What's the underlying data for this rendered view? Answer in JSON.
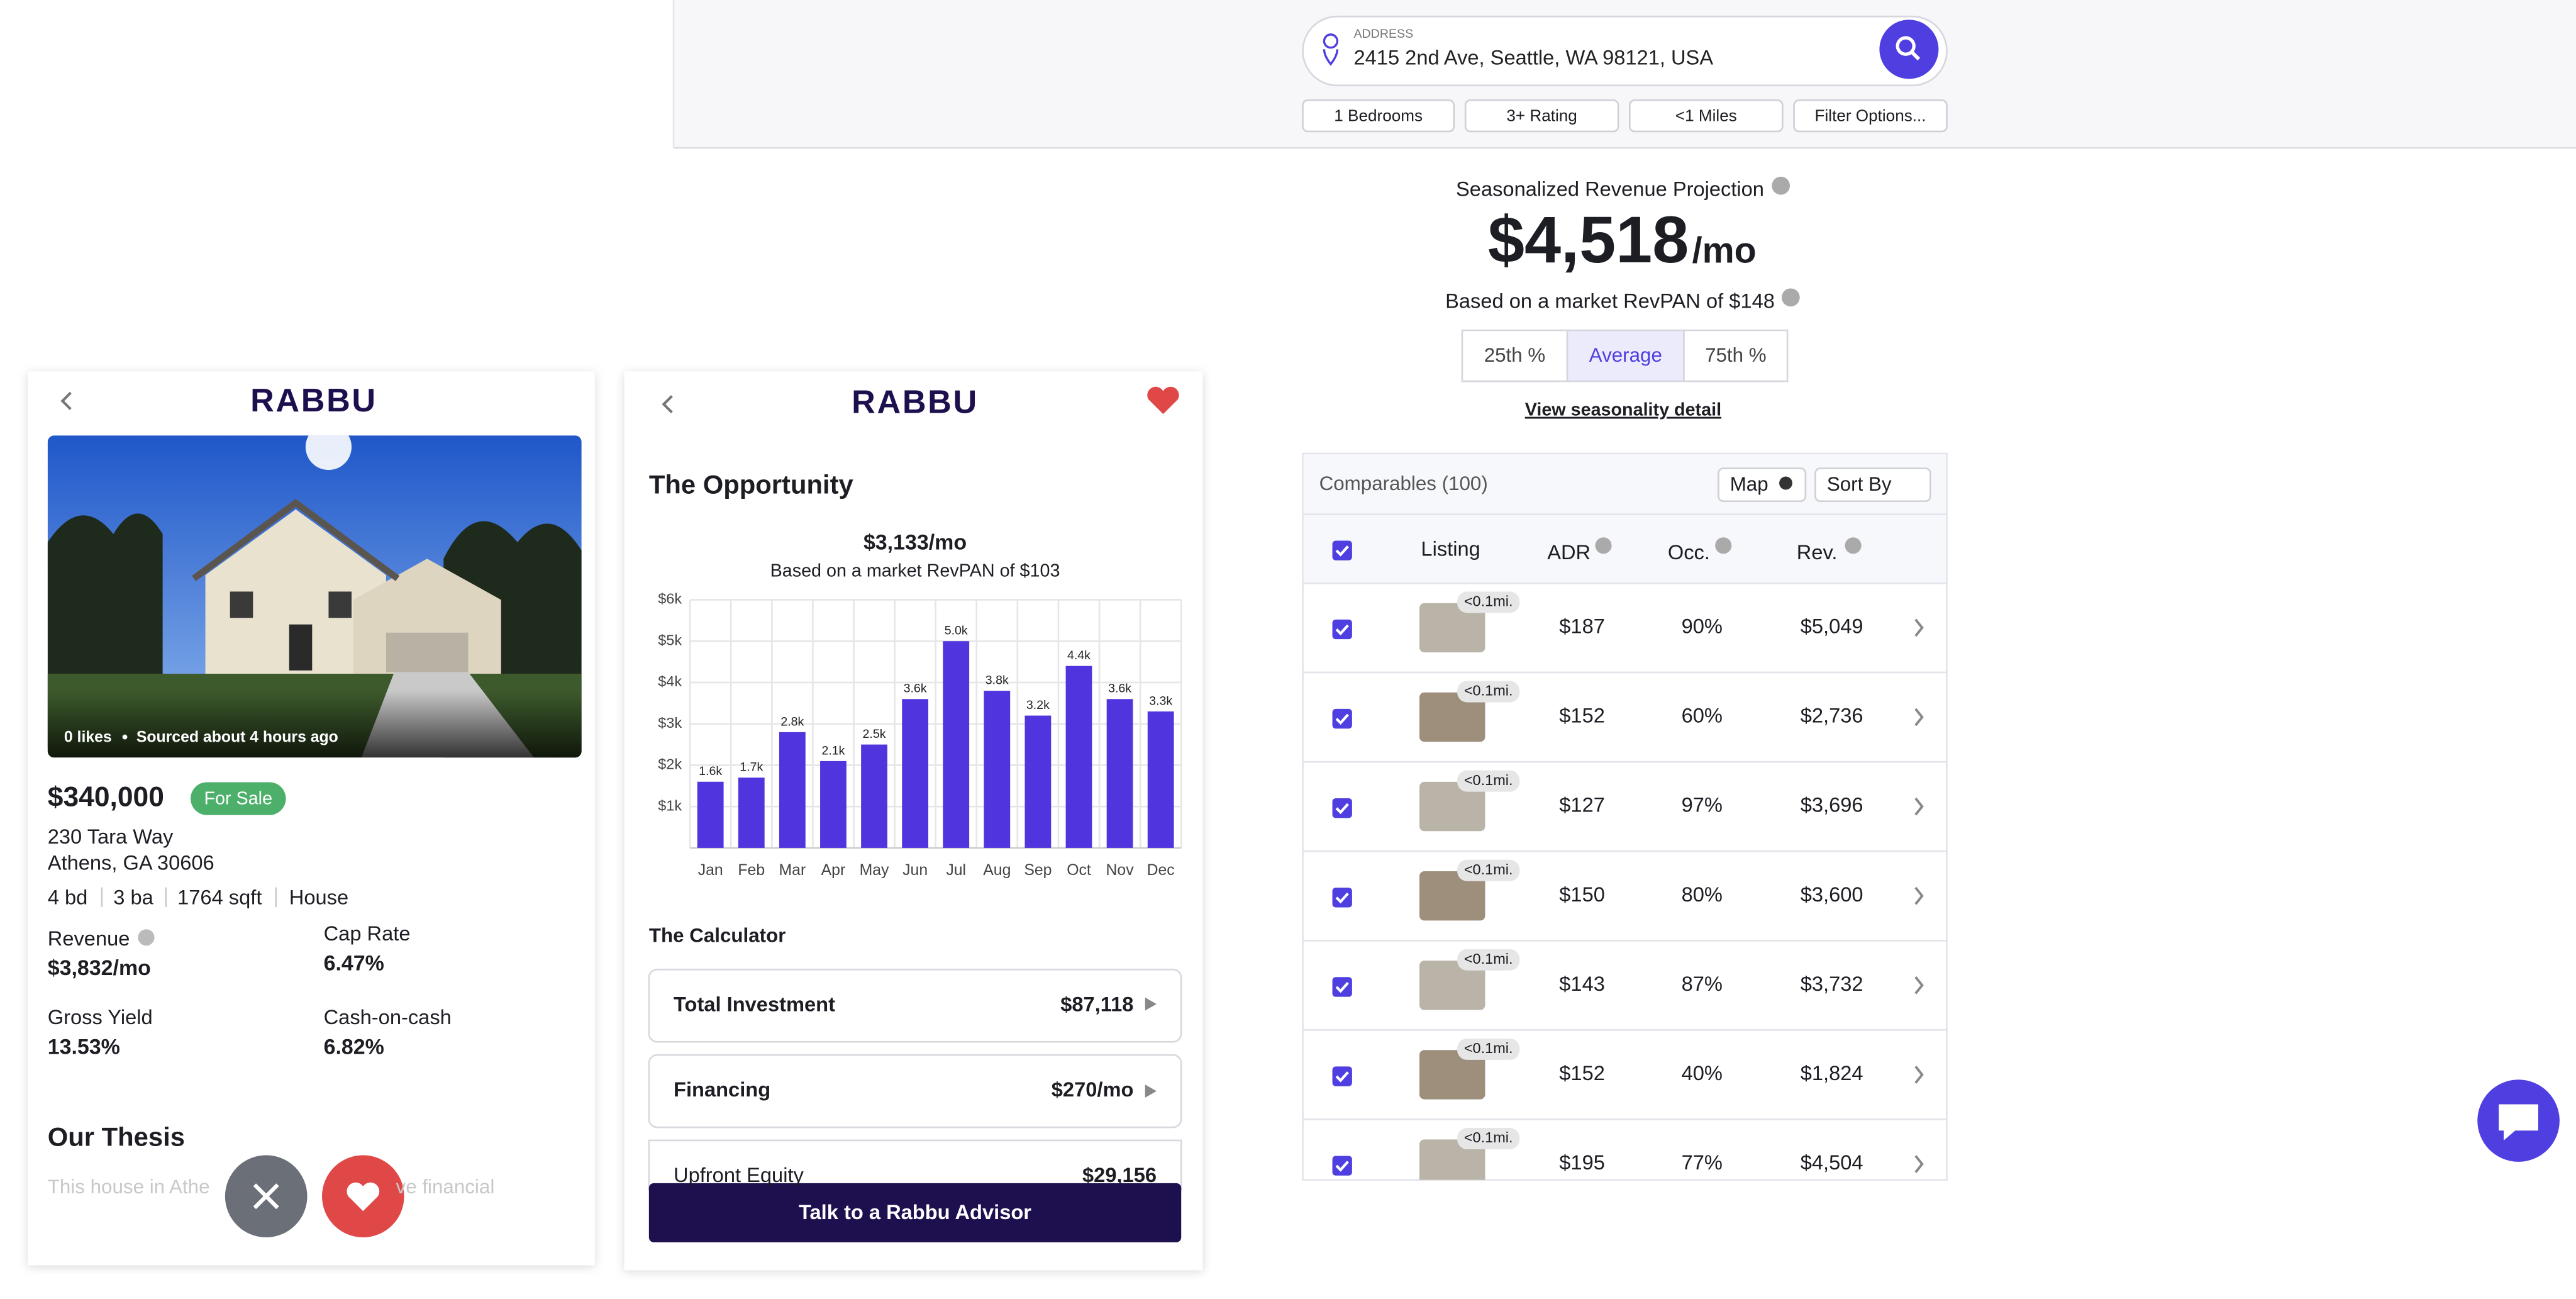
{
  "search": {
    "address_label": "ADDRESS",
    "address": "2415 2nd Ave, Seattle, WA 98121, USA",
    "filters": [
      "1 Bedrooms",
      "3+ Rating",
      "<1 Miles",
      "Filter Options..."
    ]
  },
  "projection": {
    "title": "Seasonalized Revenue Projection",
    "amount": "$4,518",
    "unit": "/mo",
    "subtitle": "Based on a market RevPAN of $148",
    "percentiles": [
      "25th %",
      "Average",
      "75th %"
    ],
    "link": "View seasonality detail"
  },
  "comparables": {
    "title": "Comparables (100)",
    "map": "Map",
    "sort": "Sort By",
    "columns": [
      "Listing",
      "ADR",
      "Occ.",
      "Rev."
    ],
    "rows": [
      {
        "distance": "<0.1mi.",
        "adr": "$187",
        "occ": "90%",
        "rev": "$5,049"
      },
      {
        "distance": "<0.1mi.",
        "adr": "$152",
        "occ": "60%",
        "rev": "$2,736"
      },
      {
        "distance": "<0.1mi.",
        "adr": "$127",
        "occ": "97%",
        "rev": "$3,696"
      },
      {
        "distance": "<0.1mi.",
        "adr": "$150",
        "occ": "80%",
        "rev": "$3,600"
      },
      {
        "distance": "<0.1mi.",
        "adr": "$143",
        "occ": "87%",
        "rev": "$3,732"
      },
      {
        "distance": "<0.1mi.",
        "adr": "$152",
        "occ": "40%",
        "rev": "$1,824"
      },
      {
        "distance": "<0.1mi.",
        "adr": "$195",
        "occ": "77%",
        "rev": "$4,504"
      }
    ]
  },
  "listing": {
    "logo": "RABBU",
    "likes": "0 likes",
    "source": "Sourced about 4 hours ago",
    "price": "$340,000",
    "status": "For Sale",
    "street": "230 Tara Way",
    "city": "Athens, GA 30606",
    "details": [
      "4 bd",
      "3 ba",
      "1764 sqft",
      "House"
    ],
    "metrics": [
      {
        "label": "Revenue",
        "value": "$3,832/mo"
      },
      {
        "label": "Cap Rate",
        "value": "6.47%"
      },
      {
        "label": "Gross Yield",
        "value": "13.53%"
      },
      {
        "label": "Cash-on-cash",
        "value": "6.82%"
      }
    ],
    "thesis_title": "Our Thesis",
    "thesis_text": [
      "This house in Athe",
      "ve financial"
    ]
  },
  "opportunity": {
    "logo": "RABBU",
    "title": "The Opportunity",
    "amount": "$3,133/mo",
    "subtitle": "Based on a market RevPAN of $103",
    "calculator_title": "The Calculator",
    "calculator": [
      {
        "label": "Total Investment",
        "value": "$87,118"
      },
      {
        "label": "Financing",
        "value": "$270/mo"
      },
      {
        "label": "Upfront Equity",
        "value": "$29,156"
      }
    ],
    "cta": "Talk to a Rabbu Advisor"
  },
  "chart_data": {
    "type": "bar",
    "categories": [
      "Jan",
      "Feb",
      "Mar",
      "Apr",
      "May",
      "Jun",
      "Jul",
      "Aug",
      "Sep",
      "Oct",
      "Nov",
      "Dec"
    ],
    "values": [
      1600,
      1700,
      2800,
      2100,
      2500,
      3600,
      5000,
      3800,
      3200,
      4400,
      3600,
      3300
    ],
    "value_labels": [
      "1.6k",
      "1.7k",
      "2.8k",
      "2.1k",
      "2.5k",
      "3.6k",
      "5.0k",
      "3.8k",
      "3.2k",
      "4.4k",
      "3.6k",
      "3.3k"
    ],
    "color": "#5035de",
    "ylim": [
      0,
      6000
    ],
    "yticks": [
      {
        "value": 1000,
        "label": "$1k"
      },
      {
        "value": 2000,
        "label": "$2k"
      },
      {
        "value": 3000,
        "label": "$3k"
      },
      {
        "value": 4000,
        "label": "$4k"
      },
      {
        "value": 5000,
        "label": "$5k"
      },
      {
        "value": 6000,
        "label": "$6k"
      }
    ],
    "grid": true
  }
}
